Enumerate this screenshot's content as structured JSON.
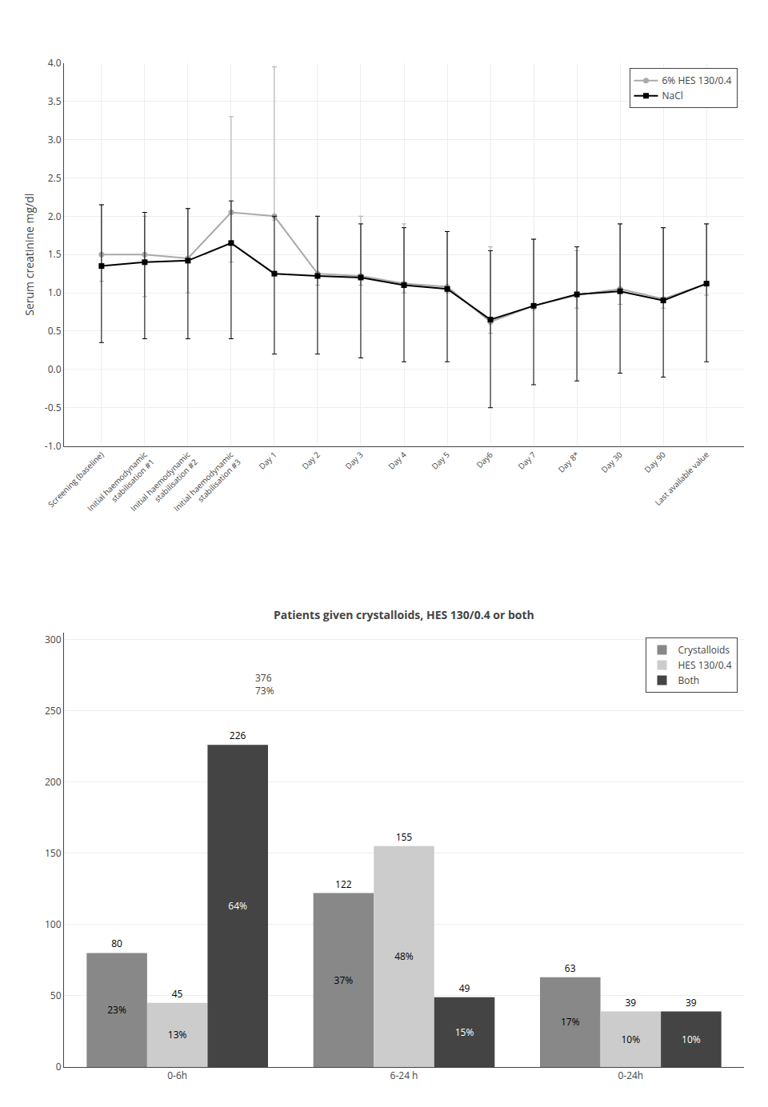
{
  "chart_data": [
    {
      "type": "line",
      "ylabel": "Serum creatinine mg/dl",
      "categories": [
        "Screening (baseline)",
        "Initial haemodynamic\nstabilisation #1",
        "Initial haemodynamic\nstabilisation #2",
        "Initial haemodynamic\nstabilisation #3",
        "Day 1",
        "Day 2",
        "Day 3",
        "Day 4",
        "Day 5",
        "Day6",
        "Day 7",
        "Day 8*",
        "Day 30",
        "Day 90",
        "Last available value"
      ],
      "series": [
        {
          "name": "6% HES 130/0.4",
          "color": "#aaaaaa",
          "marker": "circle",
          "values": [
            1.5,
            1.5,
            1.45,
            2.05,
            2.0,
            1.25,
            1.22,
            1.12,
            1.08,
            0.62,
            0.83,
            0.97,
            1.05,
            0.92,
            1.12
          ],
          "error_minus": [
            0.35,
            0.55,
            0.45,
            0.65,
            0.05,
            0.15,
            0.12,
            0.12,
            0.08,
            0.15,
            0.05,
            0.17,
            0.2,
            0.12,
            0.15
          ],
          "error_plus": [
            0.65,
            0.5,
            0.65,
            1.25,
            1.95,
            0.75,
            0.78,
            0.78,
            0.72,
            0.98,
            0.87,
            0.58,
            0.85,
            0.93,
            0.78
          ]
        },
        {
          "name": "NaCl",
          "color": "#000000",
          "marker": "square",
          "values": [
            1.35,
            1.4,
            1.42,
            1.65,
            1.25,
            1.22,
            1.2,
            1.1,
            1.05,
            0.65,
            0.83,
            0.98,
            1.02,
            0.9,
            1.12
          ],
          "error_minus": [
            1.0,
            1.0,
            1.02,
            1.25,
            1.05,
            1.02,
            1.05,
            1.0,
            0.95,
            1.15,
            1.03,
            1.13,
            1.07,
            1.0,
            1.02
          ],
          "error_plus": [
            0.8,
            0.65,
            0.68,
            0.55,
            0.75,
            0.78,
            0.7,
            0.75,
            0.75,
            0.9,
            0.87,
            0.62,
            0.88,
            0.95,
            0.78
          ]
        }
      ],
      "ylim": [
        -1.0,
        4.0
      ],
      "yticks": [
        {
          "value": -1.0,
          "label": "-1.0"
        },
        -0.5,
        {
          "value": 0.0,
          "label": "0.0"
        },
        0.5,
        {
          "value": 1.0,
          "label": "1.0"
        },
        1.5,
        {
          "value": 2.0,
          "label": "2.0"
        },
        2.5,
        {
          "value": 3.0,
          "label": "3.0"
        },
        3.5,
        {
          "value": 4.0,
          "label": "4.0"
        }
      ],
      "grid": true,
      "legend": "upper right"
    },
    {
      "type": "bar",
      "title": "Patients given crystalloids, HES 130/0.4 or both",
      "categories": [
        "0-6h",
        "6-24 h",
        "0-24h"
      ],
      "series": [
        {
          "name": "Crystalloids",
          "color": "#888888",
          "values": [
            80,
            122,
            63
          ],
          "percent_labels": [
            "23%",
            "37%",
            "17%"
          ]
        },
        {
          "name": "HES 130/0.4",
          "color": "#cccccc",
          "values": [
            45,
            155,
            39
          ],
          "percent_labels": [
            "13%",
            "48%",
            "10%"
          ]
        },
        {
          "name": "Both",
          "color": "#444444",
          "values": [
            226,
            49,
            39
          ],
          "percent_labels": [
            "64%",
            "15%",
            "10%"
          ]
        }
      ],
      "ylim": [
        0,
        305
      ],
      "yticks": [
        0,
        50,
        100,
        150,
        200,
        250,
        300
      ],
      "grid": true,
      "legend": "upper right",
      "data_labels": true,
      "annotations": [
        {
          "text": "376\n73%",
          "category": "0-6h"
        }
      ]
    }
  ]
}
